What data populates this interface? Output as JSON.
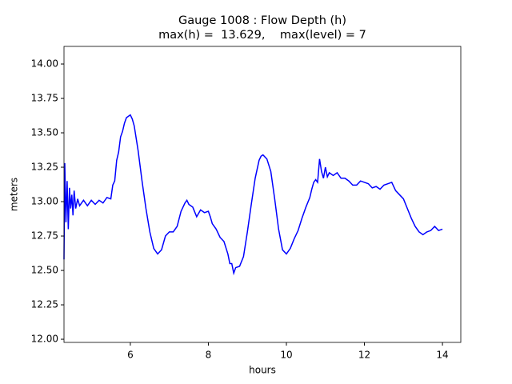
{
  "chart_data": {
    "type": "line",
    "title": "Gauge 1008 : Flow Depth (h)",
    "subtitle": "max(h) =  13.629,    max(level) = 7",
    "x_label": "hours",
    "y_label": "meters",
    "x": [
      4.3,
      4.32,
      4.35,
      4.38,
      4.41,
      4.44,
      4.47,
      4.5,
      4.53,
      4.56,
      4.6,
      4.65,
      4.7,
      4.8,
      4.9,
      5.0,
      5.1,
      5.2,
      5.3,
      5.4,
      5.5,
      5.55,
      5.6,
      5.65,
      5.7,
      5.75,
      5.8,
      5.85,
      5.9,
      6.0,
      6.05,
      6.1,
      6.2,
      6.3,
      6.4,
      6.5,
      6.6,
      6.7,
      6.8,
      6.9,
      7.0,
      7.1,
      7.2,
      7.3,
      7.4,
      7.45,
      7.5,
      7.6,
      7.7,
      7.8,
      7.9,
      8.0,
      8.05,
      8.1,
      8.2,
      8.3,
      8.4,
      8.5,
      8.55,
      8.6,
      8.65,
      8.7,
      8.8,
      8.9,
      9.0,
      9.1,
      9.2,
      9.3,
      9.35,
      9.4,
      9.5,
      9.6,
      9.7,
      9.8,
      9.9,
      10.0,
      10.1,
      10.2,
      10.3,
      10.4,
      10.5,
      10.6,
      10.65,
      10.7,
      10.75,
      10.8,
      10.85,
      10.9,
      10.95,
      11.0,
      11.05,
      11.1,
      11.2,
      11.3,
      11.4,
      11.5,
      11.6,
      11.7,
      11.8,
      11.9,
      12.0,
      12.1,
      12.2,
      12.3,
      12.4,
      12.5,
      12.6,
      12.7,
      12.8,
      12.9,
      13.0,
      13.1,
      13.2,
      13.3,
      13.4,
      13.5,
      13.6,
      13.7,
      13.8,
      13.9,
      14.0
    ],
    "series": [
      {
        "color": "#0000ff",
        "values": [
          12.58,
          13.28,
          12.85,
          13.15,
          12.8,
          13.1,
          12.95,
          13.05,
          12.9,
          13.08,
          12.95,
          13.02,
          12.97,
          13.01,
          12.97,
          13.01,
          12.98,
          13.01,
          12.99,
          13.03,
          13.02,
          13.12,
          13.15,
          13.3,
          13.36,
          13.47,
          13.51,
          13.57,
          13.61,
          13.63,
          13.6,
          13.55,
          13.37,
          13.15,
          12.95,
          12.78,
          12.66,
          12.62,
          12.65,
          12.75,
          12.78,
          12.78,
          12.82,
          12.93,
          12.99,
          13.01,
          12.98,
          12.96,
          12.89,
          12.94,
          12.92,
          12.93,
          12.89,
          12.84,
          12.8,
          12.74,
          12.71,
          12.62,
          12.55,
          12.55,
          12.48,
          12.52,
          12.53,
          12.6,
          12.78,
          12.98,
          13.17,
          13.3,
          13.33,
          13.34,
          13.31,
          13.22,
          13.02,
          12.8,
          12.65,
          12.62,
          12.66,
          12.73,
          12.79,
          12.88,
          12.96,
          13.03,
          13.09,
          13.14,
          13.16,
          13.14,
          13.31,
          13.22,
          13.17,
          13.25,
          13.18,
          13.21,
          13.19,
          13.21,
          13.17,
          13.17,
          13.15,
          13.12,
          13.12,
          13.15,
          13.14,
          13.13,
          13.1,
          13.11,
          13.09,
          13.12,
          13.13,
          13.14,
          13.08,
          13.05,
          13.02,
          12.95,
          12.88,
          12.82,
          12.78,
          12.76,
          12.78,
          12.79,
          12.82,
          12.79,
          12.8
        ]
      }
    ],
    "xlim": [
      4.3,
      14.47
    ],
    "ylim": [
      11.977,
      14.128
    ],
    "xticks": [
      6,
      8,
      10,
      12,
      14
    ],
    "yticks": [
      {
        "value": 12,
        "label": "12.00"
      },
      {
        "value": 12.25,
        "label": "12.25"
      },
      {
        "value": 12.5,
        "label": "12.50"
      },
      {
        "value": 12.75,
        "label": "12.75"
      },
      {
        "value": 13,
        "label": "13.00"
      },
      {
        "value": 13.25,
        "label": "13.25"
      },
      {
        "value": 13.5,
        "label": "13.50"
      },
      {
        "value": 13.75,
        "label": "13.75"
      },
      {
        "value": 14,
        "label": "14.00"
      }
    ]
  }
}
